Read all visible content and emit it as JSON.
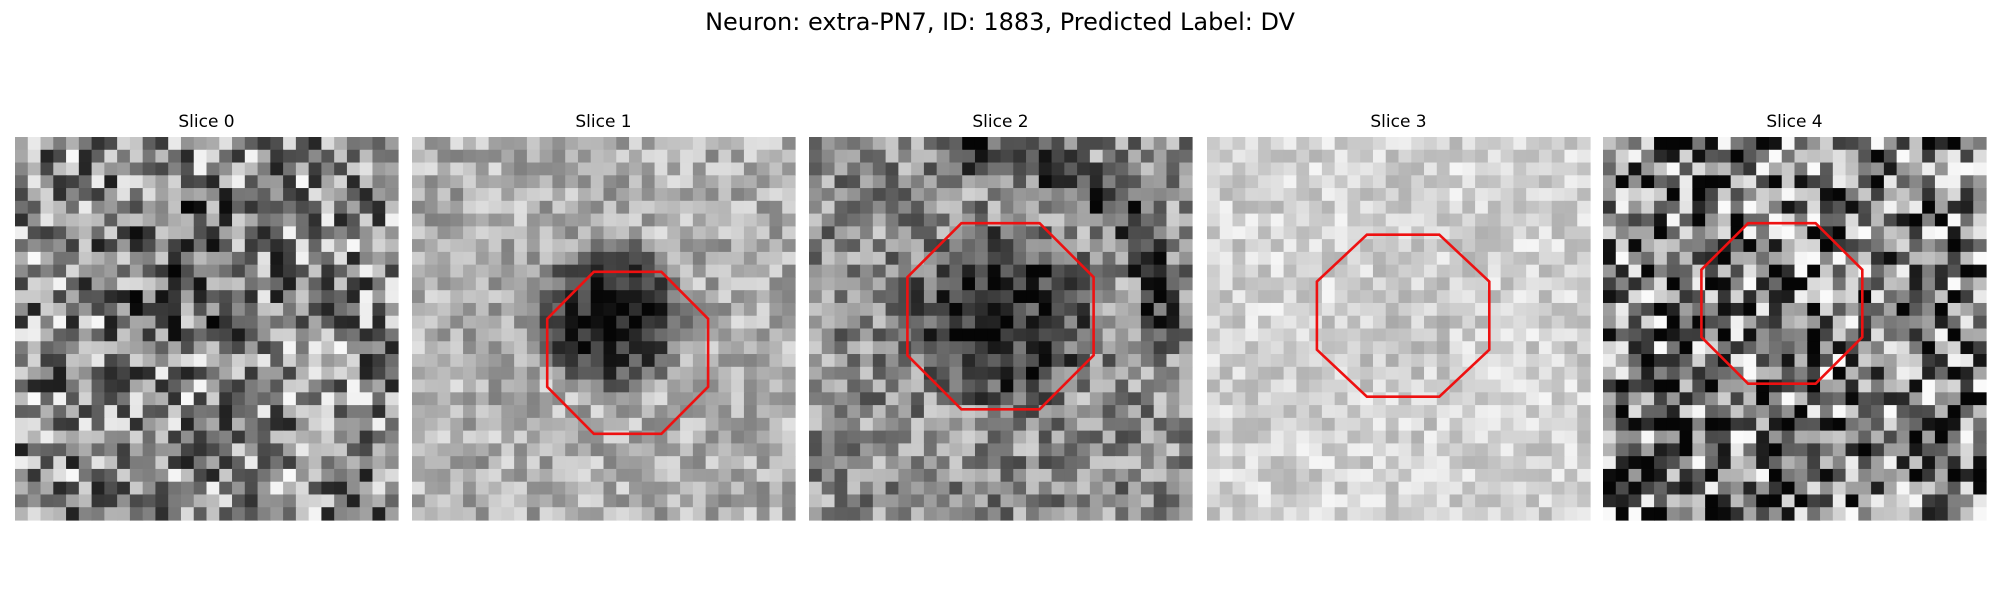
{
  "header": {
    "title": "Neuron: extra-PN7, ID: 1883, Predicted Label: DV"
  },
  "panels": [
    {
      "title": "Slice 0"
    },
    {
      "title": "Slice 1"
    },
    {
      "title": "Slice 2"
    },
    {
      "title": "Slice 3"
    },
    {
      "title": "Slice 4"
    }
  ]
}
